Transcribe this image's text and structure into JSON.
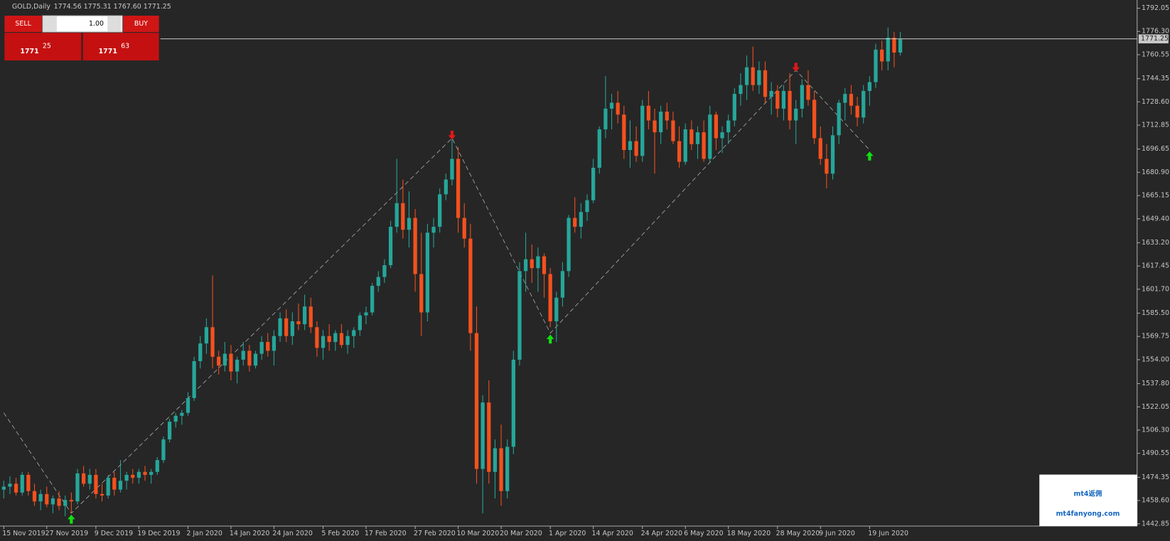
{
  "chart_data": {
    "type": "candlestick",
    "title": "GOLD,Daily",
    "subtitle": "1774.56 1775.31 1767.60 1771.25",
    "up_color": "#26a69a",
    "down_color": "#f4511e",
    "candles": [
      [
        1466,
        1472,
        1460,
        1468
      ],
      [
        1468,
        1475,
        1463,
        1470
      ],
      [
        1470,
        1474,
        1462,
        1464
      ],
      [
        1464,
        1478,
        1462,
        1476
      ],
      [
        1476,
        1478,
        1462,
        1465
      ],
      [
        1465,
        1470,
        1455,
        1458
      ],
      [
        1458,
        1466,
        1452,
        1463
      ],
      [
        1463,
        1468,
        1454,
        1456
      ],
      [
        1456,
        1462,
        1450,
        1460
      ],
      [
        1460,
        1465,
        1452,
        1455
      ],
      [
        1455,
        1462,
        1448,
        1459
      ],
      [
        1459,
        1464,
        1450,
        1458
      ],
      [
        1458,
        1480,
        1456,
        1477
      ],
      [
        1477,
        1482,
        1468,
        1470
      ],
      [
        1470,
        1480,
        1466,
        1476
      ],
      [
        1476,
        1480,
        1460,
        1463
      ],
      [
        1463,
        1470,
        1458,
        1462
      ],
      [
        1462,
        1476,
        1460,
        1474
      ],
      [
        1474,
        1478,
        1462,
        1466
      ],
      [
        1466,
        1486,
        1464,
        1472
      ],
      [
        1472,
        1478,
        1466,
        1476
      ],
      [
        1476,
        1480,
        1470,
        1474
      ],
      [
        1474,
        1480,
        1470,
        1478
      ],
      [
        1478,
        1482,
        1472,
        1476
      ],
      [
        1476,
        1480,
        1470,
        1478
      ],
      [
        1478,
        1488,
        1476,
        1486
      ],
      [
        1486,
        1502,
        1484,
        1500
      ],
      [
        1500,
        1514,
        1498,
        1512
      ],
      [
        1512,
        1518,
        1508,
        1516
      ],
      [
        1516,
        1520,
        1510,
        1518
      ],
      [
        1518,
        1532,
        1516,
        1528
      ],
      [
        1528,
        1556,
        1526,
        1553
      ],
      [
        1553,
        1570,
        1548,
        1565
      ],
      [
        1565,
        1582,
        1558,
        1576
      ],
      [
        1576,
        1611,
        1548,
        1556
      ],
      [
        1556,
        1560,
        1544,
        1550
      ],
      [
        1550,
        1566,
        1546,
        1558
      ],
      [
        1558,
        1564,
        1540,
        1546
      ],
      [
        1546,
        1556,
        1538,
        1554
      ],
      [
        1554,
        1566,
        1550,
        1560
      ],
      [
        1560,
        1564,
        1546,
        1550
      ],
      [
        1550,
        1560,
        1548,
        1558
      ],
      [
        1558,
        1570,
        1554,
        1566
      ],
      [
        1566,
        1572,
        1556,
        1560
      ],
      [
        1560,
        1574,
        1550,
        1570
      ],
      [
        1570,
        1586,
        1566,
        1582
      ],
      [
        1582,
        1588,
        1566,
        1570
      ],
      [
        1570,
        1586,
        1564,
        1580
      ],
      [
        1580,
        1592,
        1574,
        1578
      ],
      [
        1578,
        1598,
        1574,
        1590
      ],
      [
        1590,
        1596,
        1572,
        1576
      ],
      [
        1576,
        1580,
        1556,
        1562
      ],
      [
        1562,
        1574,
        1554,
        1570
      ],
      [
        1570,
        1578,
        1560,
        1566
      ],
      [
        1566,
        1574,
        1560,
        1572
      ],
      [
        1572,
        1578,
        1562,
        1564
      ],
      [
        1564,
        1574,
        1558,
        1570
      ],
      [
        1570,
        1576,
        1562,
        1574
      ],
      [
        1574,
        1586,
        1570,
        1584
      ],
      [
        1584,
        1590,
        1578,
        1586
      ],
      [
        1586,
        1606,
        1584,
        1604
      ],
      [
        1604,
        1614,
        1600,
        1610
      ],
      [
        1610,
        1622,
        1606,
        1618
      ],
      [
        1618,
        1648,
        1616,
        1644
      ],
      [
        1644,
        1690,
        1640,
        1660
      ],
      [
        1660,
        1676,
        1636,
        1642
      ],
      [
        1642,
        1668,
        1630,
        1650
      ],
      [
        1650,
        1656,
        1600,
        1612
      ],
      [
        1612,
        1640,
        1570,
        1586
      ],
      [
        1586,
        1646,
        1580,
        1640
      ],
      [
        1640,
        1650,
        1630,
        1644
      ],
      [
        1644,
        1670,
        1640,
        1666
      ],
      [
        1666,
        1680,
        1662,
        1676
      ],
      [
        1676,
        1704,
        1672,
        1690
      ],
      [
        1690,
        1698,
        1640,
        1650
      ],
      [
        1650,
        1660,
        1630,
        1636
      ],
      [
        1636,
        1646,
        1560,
        1572
      ],
      [
        1572,
        1590,
        1470,
        1480
      ],
      [
        1480,
        1530,
        1450,
        1525
      ],
      [
        1525,
        1540,
        1470,
        1478
      ],
      [
        1478,
        1500,
        1460,
        1494
      ],
      [
        1494,
        1510,
        1455,
        1465
      ],
      [
        1465,
        1500,
        1460,
        1495
      ],
      [
        1495,
        1560,
        1490,
        1554
      ],
      [
        1554,
        1620,
        1550,
        1614
      ],
      [
        1614,
        1640,
        1600,
        1622
      ],
      [
        1622,
        1632,
        1606,
        1616
      ],
      [
        1616,
        1630,
        1600,
        1624
      ],
      [
        1624,
        1626,
        1596,
        1612
      ],
      [
        1612,
        1616,
        1576,
        1580
      ],
      [
        1580,
        1600,
        1566,
        1596
      ],
      [
        1596,
        1620,
        1590,
        1614
      ],
      [
        1614,
        1652,
        1610,
        1650
      ],
      [
        1650,
        1664,
        1640,
        1644
      ],
      [
        1644,
        1660,
        1636,
        1654
      ],
      [
        1654,
        1666,
        1648,
        1662
      ],
      [
        1662,
        1690,
        1660,
        1684
      ],
      [
        1684,
        1712,
        1680,
        1710
      ],
      [
        1710,
        1746,
        1704,
        1724
      ],
      [
        1724,
        1734,
        1710,
        1728
      ],
      [
        1728,
        1736,
        1714,
        1720
      ],
      [
        1720,
        1726,
        1690,
        1696
      ],
      [
        1696,
        1716,
        1684,
        1702
      ],
      [
        1702,
        1712,
        1688,
        1692
      ],
      [
        1692,
        1730,
        1688,
        1726
      ],
      [
        1726,
        1736,
        1710,
        1716
      ],
      [
        1716,
        1724,
        1680,
        1708
      ],
      [
        1708,
        1726,
        1700,
        1722
      ],
      [
        1722,
        1728,
        1710,
        1716
      ],
      [
        1716,
        1722,
        1700,
        1702
      ],
      [
        1702,
        1712,
        1684,
        1688
      ],
      [
        1688,
        1714,
        1686,
        1710
      ],
      [
        1710,
        1716,
        1696,
        1700
      ],
      [
        1700,
        1712,
        1690,
        1708
      ],
      [
        1708,
        1716,
        1688,
        1690
      ],
      [
        1690,
        1726,
        1688,
        1720
      ],
      [
        1720,
        1722,
        1696,
        1704
      ],
      [
        1704,
        1712,
        1694,
        1708
      ],
      [
        1708,
        1720,
        1700,
        1716
      ],
      [
        1716,
        1738,
        1712,
        1734
      ],
      [
        1734,
        1748,
        1726,
        1740
      ],
      [
        1740,
        1760,
        1730,
        1752
      ],
      [
        1752,
        1766,
        1736,
        1740
      ],
      [
        1740,
        1756,
        1734,
        1750
      ],
      [
        1750,
        1756,
        1728,
        1732
      ],
      [
        1732,
        1742,
        1720,
        1736
      ],
      [
        1736,
        1740,
        1718,
        1724
      ],
      [
        1724,
        1740,
        1716,
        1736
      ],
      [
        1736,
        1748,
        1710,
        1716
      ],
      [
        1716,
        1730,
        1700,
        1724
      ],
      [
        1724,
        1744,
        1718,
        1740
      ],
      [
        1740,
        1750,
        1726,
        1730
      ],
      [
        1730,
        1736,
        1700,
        1704
      ],
      [
        1704,
        1712,
        1686,
        1690
      ],
      [
        1690,
        1700,
        1670,
        1680
      ],
      [
        1680,
        1712,
        1676,
        1706
      ],
      [
        1706,
        1730,
        1700,
        1728
      ],
      [
        1728,
        1738,
        1716,
        1734
      ],
      [
        1734,
        1740,
        1720,
        1726
      ],
      [
        1726,
        1732,
        1712,
        1718
      ],
      [
        1718,
        1740,
        1714,
        1736
      ],
      [
        1736,
        1746,
        1726,
        1742
      ],
      [
        1742,
        1768,
        1738,
        1764
      ],
      [
        1764,
        1770,
        1750,
        1756
      ],
      [
        1756,
        1779,
        1750,
        1772
      ],
      [
        1772,
        1776,
        1752,
        1762
      ],
      [
        1762,
        1776,
        1760,
        1771
      ]
    ],
    "date_labels": [
      {
        "index": 0,
        "label": "15 Nov 2019"
      },
      {
        "index": 7,
        "label": "27 Nov 2019"
      },
      {
        "index": 15,
        "label": "9 Dec 2019"
      },
      {
        "index": 22,
        "label": "19 Dec 2019"
      },
      {
        "index": 30,
        "label": "2 Jan 2020"
      },
      {
        "index": 37,
        "label": "14 Jan 2020"
      },
      {
        "index": 44,
        "label": "24 Jan 2020"
      },
      {
        "index": 52,
        "label": "5 Feb 2020"
      },
      {
        "index": 59,
        "label": "17 Feb 2020"
      },
      {
        "index": 67,
        "label": "27 Feb 2020"
      },
      {
        "index": 74,
        "label": "10 Mar 2020"
      },
      {
        "index": 81,
        "label": "20 Mar 2020"
      },
      {
        "index": 89,
        "label": "1 Apr 2020"
      },
      {
        "index": 96,
        "label": "14 Apr 2020"
      },
      {
        "index": 104,
        "label": "24 Apr 2020"
      },
      {
        "index": 111,
        "label": "6 May 2020"
      },
      {
        "index": 118,
        "label": "18 May 2020"
      },
      {
        "index": 126,
        "label": "28 May 2020"
      },
      {
        "index": 133,
        "label": "9 Jun 2020"
      },
      {
        "index": 141,
        "label": "19 Jun 2020"
      }
    ],
    "zigzag": {
      "x": [
        0,
        11,
        73,
        89,
        129,
        141
      ],
      "values": [
        1518,
        1450,
        1704,
        1572,
        1750,
        1696
      ]
    },
    "price_line": 1771.25,
    "ylim": [
      1441.3,
      1797.6
    ],
    "yticks": [
      1792.05,
      {
        "value": 1776.3,
        "label": "1776.30"
      },
      1760.55,
      1744.35,
      {
        "value": 1728.6,
        "label": "1728.60"
      },
      1712.85,
      1696.65,
      {
        "value": 1680.9,
        "label": "1680.90"
      },
      1665.15,
      {
        "value": 1649.4,
        "label": "1649.40"
      },
      {
        "value": 1633.2,
        "label": "1633.20"
      },
      1617.45,
      {
        "value": 1601.7,
        "label": "1601.70"
      },
      {
        "value": 1585.5,
        "label": "1585.50"
      },
      1569.75,
      {
        "value": 1554,
        "label": "1554.00"
      },
      {
        "value": 1537.8,
        "label": "1537.80"
      },
      1522.05,
      {
        "value": 1506.3,
        "label": "1506.30"
      },
      1490.55,
      1474.35,
      {
        "value": 1458.6,
        "label": "1458.60"
      },
      1442.85
    ]
  },
  "trade_panel": {
    "sell": "SELL",
    "buy": "BUY",
    "lot": "1.00",
    "bid_big": "1771",
    "bid_small": "25",
    "ask_big": "1771",
    "ask_small": "63"
  },
  "watermark": {
    "brand": "mt4返佣",
    "url": "mt4fanyong.com"
  }
}
